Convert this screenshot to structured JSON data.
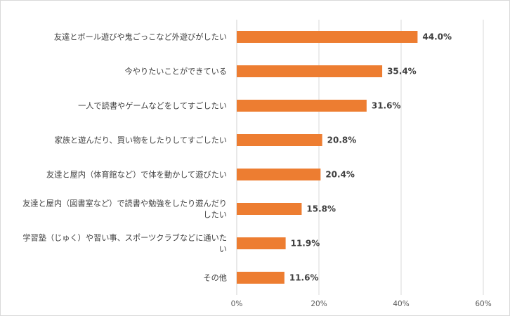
{
  "chart_data": {
    "type": "bar",
    "orientation": "horizontal",
    "categories": [
      [
        "友達とボール遊びや鬼ごっこなど外遊びがしたい"
      ],
      [
        "今やりたいことができている"
      ],
      [
        "一人で読書やゲームなどをしてすごしたい"
      ],
      [
        "家族と遊んだり、買い物をしたりしてすごしたい"
      ],
      [
        "友達と屋内（体育館など）で体を動かして遊びたい"
      ],
      [
        "友達と屋内（図書室など）で読書や勉強をしたり遊んだり",
        "したい"
      ],
      [
        "学習塾（じゅく）や習い事、スポーツクラブなどに通いた",
        "い"
      ],
      [
        "その他"
      ]
    ],
    "values": [
      44.0,
      35.4,
      31.6,
      20.8,
      20.4,
      15.8,
      11.9,
      11.6
    ],
    "value_labels": [
      "44.0%",
      "35.4%",
      "31.6%",
      "20.8%",
      "20.4%",
      "15.8%",
      "11.9%",
      "11.6%"
    ],
    "xlim": [
      0,
      60
    ],
    "x_ticks": [
      0,
      20,
      40,
      60
    ],
    "x_tick_labels": [
      "0%",
      "20%",
      "40%",
      "60%"
    ],
    "bar_color": "#ED7D31",
    "grid": "vertical",
    "legend": "none"
  }
}
